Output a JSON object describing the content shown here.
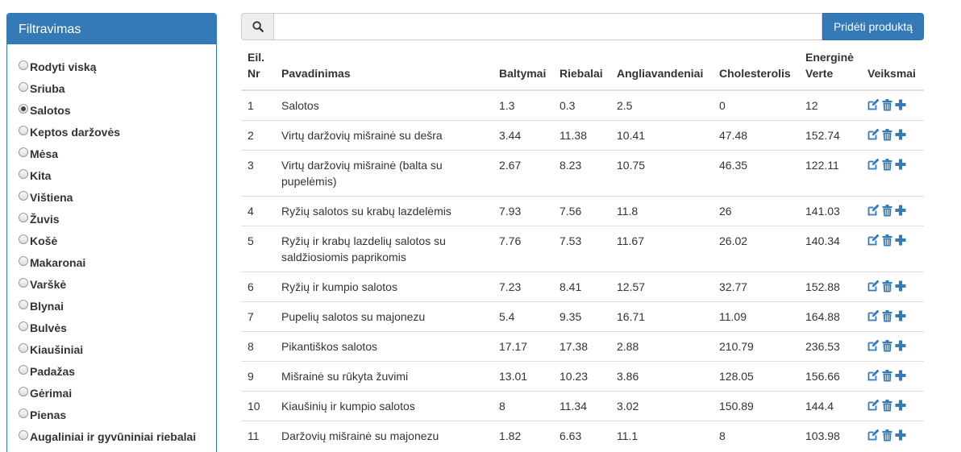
{
  "sidebar": {
    "title": "Filtravimas",
    "items": [
      {
        "label": "Rodyti viską",
        "checked": false
      },
      {
        "label": "Sriuba",
        "checked": false
      },
      {
        "label": "Salotos",
        "checked": true
      },
      {
        "label": "Keptos daržovės",
        "checked": false
      },
      {
        "label": "Mėsa",
        "checked": false
      },
      {
        "label": "Kita",
        "checked": false
      },
      {
        "label": "Vištiena",
        "checked": false
      },
      {
        "label": "Žuvis",
        "checked": false
      },
      {
        "label": "Košė",
        "checked": false
      },
      {
        "label": "Makaronai",
        "checked": false
      },
      {
        "label": "Varškė",
        "checked": false
      },
      {
        "label": "Blynai",
        "checked": false
      },
      {
        "label": "Bulvės",
        "checked": false
      },
      {
        "label": "Kiaušiniai",
        "checked": false
      },
      {
        "label": "Padažas",
        "checked": false
      },
      {
        "label": "Gėrimai",
        "checked": false
      },
      {
        "label": "Pienas",
        "checked": false
      },
      {
        "label": "Augaliniai ir gyvūniniai riebalai",
        "checked": false
      }
    ]
  },
  "search": {
    "icon": "search-icon",
    "value": "",
    "placeholder": "",
    "add_label": "Pridėti produktą"
  },
  "table": {
    "headers": {
      "nr": "Eil. Nr",
      "name": "Pavadinimas",
      "protein": "Baltymai",
      "fat": "Riebalai",
      "carbs": "Angliavandeniai",
      "cholesterol": "Cholesterolis",
      "energy": "Energinė Verte",
      "actions": "Veiksmai"
    },
    "rows": [
      {
        "nr": "1",
        "name": "Salotos",
        "protein": "1.3",
        "fat": "0.3",
        "carbs": "2.5",
        "cholesterol": "0",
        "energy": "12"
      },
      {
        "nr": "2",
        "name": "Virtų daržovių mišrainė su dešra",
        "protein": "3.44",
        "fat": "11.38",
        "carbs": "10.41",
        "cholesterol": "47.48",
        "energy": "152.74"
      },
      {
        "nr": "3",
        "name": "Virtų daržovių mišrainė (balta su pupelėmis)",
        "protein": "2.67",
        "fat": "8.23",
        "carbs": "10.75",
        "cholesterol": "46.35",
        "energy": "122.11"
      },
      {
        "nr": "4",
        "name": "Ryžių salotos su krabų lazdelėmis",
        "protein": "7.93",
        "fat": "7.56",
        "carbs": "11.8",
        "cholesterol": "26",
        "energy": "141.03"
      },
      {
        "nr": "5",
        "name": "Ryžių ir krabų lazdelių salotos su saldžiosiomis paprikomis",
        "protein": "7.76",
        "fat": "7.53",
        "carbs": "11.67",
        "cholesterol": "26.02",
        "energy": "140.34"
      },
      {
        "nr": "6",
        "name": "Ryžių ir kumpio salotos",
        "protein": "7.23",
        "fat": "8.41",
        "carbs": "12.57",
        "cholesterol": "32.77",
        "energy": "152.88"
      },
      {
        "nr": "7",
        "name": "Pupelių salotos su majonezu",
        "protein": "5.4",
        "fat": "9.35",
        "carbs": "16.71",
        "cholesterol": "11.09",
        "energy": "164.88"
      },
      {
        "nr": "8",
        "name": "Pikantiškos salotos",
        "protein": "17.17",
        "fat": "17.38",
        "carbs": "2.88",
        "cholesterol": "210.79",
        "energy": "236.53"
      },
      {
        "nr": "9",
        "name": "Mišrainė su rūkyta žuvimi",
        "protein": "13.01",
        "fat": "10.23",
        "carbs": "3.86",
        "cholesterol": "128.05",
        "energy": "156.66"
      },
      {
        "nr": "10",
        "name": "Kiaušinių ir kumpio salotos",
        "protein": "8",
        "fat": "11.34",
        "carbs": "3.02",
        "cholesterol": "150.89",
        "energy": "144.4"
      },
      {
        "nr": "11",
        "name": "Daržovių mišrainė su majonezu",
        "protein": "1.82",
        "fat": "6.63",
        "carbs": "11.1",
        "cholesterol": "8",
        "energy": "103.98"
      }
    ],
    "action_icons": [
      "edit-icon",
      "trash-icon",
      "plus-icon"
    ]
  },
  "colors": {
    "primary": "#337ab7",
    "text": "#333333",
    "border": "#dddddd"
  }
}
